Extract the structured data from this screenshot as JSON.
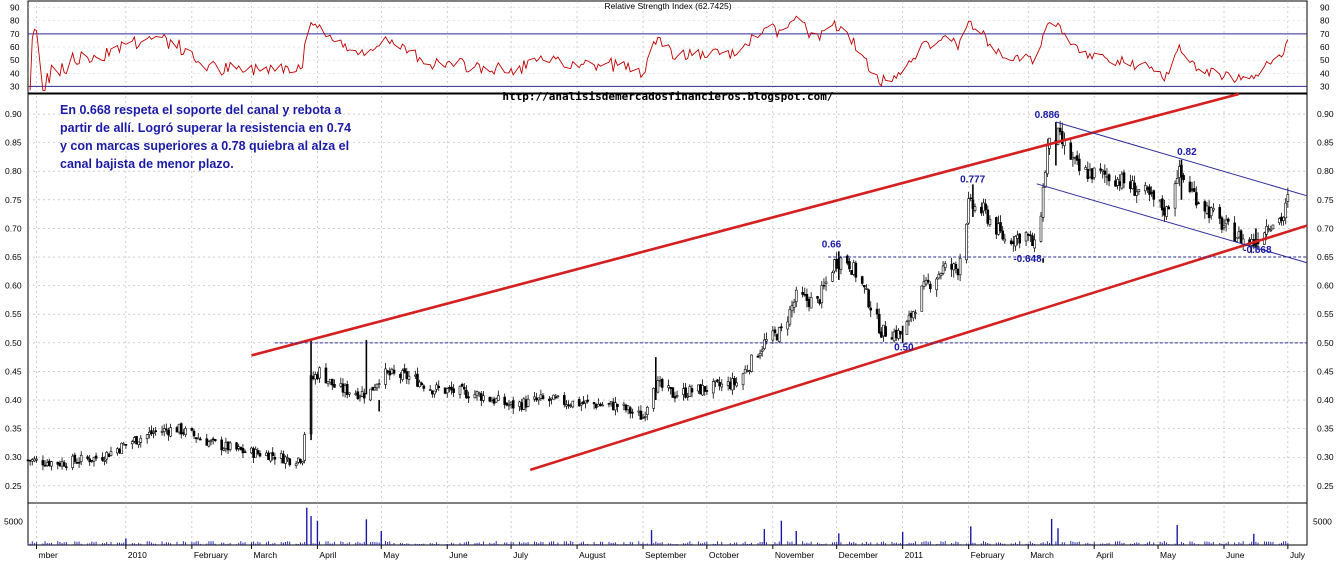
{
  "chart_data": {
    "type": "candlestick",
    "rsi_panel": {
      "title": "Relative Strength Index (62.7425)",
      "y_ticks": [
        30,
        40,
        50,
        60,
        70,
        80,
        90
      ],
      "ylim": [
        25,
        95
      ],
      "levels": [
        30,
        70
      ],
      "series_color": "#c00000"
    },
    "price_panel": {
      "y_ticks": [
        "0.25",
        "0.30",
        "0.35",
        "0.40",
        "0.45",
        "0.50",
        "0.55",
        "0.60",
        "0.65",
        "0.70",
        "0.75",
        "0.80",
        "0.85",
        "0.90"
      ],
      "ylim": [
        0.22,
        0.935
      ],
      "path_points": [
        [
          "2009-11-16",
          0.295
        ],
        [
          "2009-12-01",
          0.29
        ],
        [
          "2009-12-20",
          0.3
        ],
        [
          "2010-01-05",
          0.33
        ],
        [
          "2010-01-15",
          0.345
        ],
        [
          "2010-01-25",
          0.35
        ],
        [
          "2010-02-10",
          0.325
        ],
        [
          "2010-02-25",
          0.31
        ],
        [
          "2010-03-10",
          0.305
        ],
        [
          "2010-03-20",
          0.295
        ],
        [
          "2010-03-25",
          0.3
        ],
        [
          "2010-03-28",
          0.43
        ],
        [
          "2010-04-02",
          0.45
        ],
        [
          "2010-04-10",
          0.42
        ],
        [
          "2010-04-25",
          0.41
        ],
        [
          "2010-05-01",
          0.445
        ],
        [
          "2010-05-15",
          0.44
        ],
        [
          "2010-05-25",
          0.42
        ],
        [
          "2010-06-15",
          0.41
        ],
        [
          "2010-07-01",
          0.39
        ],
        [
          "2010-07-15",
          0.4
        ],
        [
          "2010-08-01",
          0.395
        ],
        [
          "2010-08-20",
          0.39
        ],
        [
          "2010-09-01",
          0.37
        ],
        [
          "2010-09-06",
          0.43
        ],
        [
          "2010-09-15",
          0.41
        ],
        [
          "2010-10-01",
          0.42
        ],
        [
          "2010-10-15",
          0.43
        ],
        [
          "2010-10-28",
          0.5
        ],
        [
          "2010-11-05",
          0.52
        ],
        [
          "2010-11-12",
          0.58
        ],
        [
          "2010-11-22",
          0.57
        ],
        [
          "2010-11-30",
          0.64
        ],
        [
          "2010-12-05",
          0.65
        ],
        [
          "2010-12-12",
          0.61
        ],
        [
          "2010-12-22",
          0.52
        ],
        [
          "2011-01-01",
          0.515
        ],
        [
          "2011-01-10",
          0.59
        ],
        [
          "2011-01-20",
          0.63
        ],
        [
          "2011-01-27",
          0.63
        ],
        [
          "2011-02-01",
          0.74
        ],
        [
          "2011-02-08",
          0.73
        ],
        [
          "2011-02-18",
          0.68
        ],
        [
          "2011-02-28",
          0.69
        ],
        [
          "2011-03-05",
          0.66
        ],
        [
          "2011-03-10",
          0.84
        ],
        [
          "2011-03-15",
          0.86
        ],
        [
          "2011-03-25",
          0.8
        ],
        [
          "2011-04-10",
          0.79
        ],
        [
          "2011-04-25",
          0.76
        ],
        [
          "2011-05-05",
          0.73
        ],
        [
          "2011-05-10",
          0.8
        ],
        [
          "2011-05-18",
          0.76
        ],
        [
          "2011-05-30",
          0.71
        ],
        [
          "2011-06-10",
          0.68
        ],
        [
          "2011-06-15",
          0.675
        ],
        [
          "2011-06-22",
          0.71
        ],
        [
          "2011-06-29",
          0.72
        ],
        [
          "2011-07-01",
          0.75
        ]
      ],
      "spikes": [
        [
          "2010-03-29",
          0.505,
          0.33
        ],
        [
          "2010-04-24",
          0.505,
          0.41
        ],
        [
          "2010-04-30",
          0.4,
          0.38
        ],
        [
          "2010-09-07",
          0.475,
          0.4
        ],
        [
          "2010-12-02",
          0.66,
          0.61
        ],
        [
          "2011-01-01",
          0.53,
          0.5
        ],
        [
          "2011-02-03",
          0.777,
          0.72
        ],
        [
          "2011-03-08",
          0.648,
          0.64
        ],
        [
          "2011-03-14",
          0.886,
          0.81
        ],
        [
          "2011-05-12",
          0.82,
          0.75
        ],
        [
          "2011-06-16",
          0.7,
          0.668
        ]
      ],
      "red_channel_upper": [
        [
          "2010-03-01",
          0.478
        ],
        [
          "2011-06-08",
          0.935
        ]
      ],
      "red_channel_lower": [
        [
          "2010-07-10",
          0.278
        ],
        [
          "2011-07-10",
          0.705
        ]
      ],
      "blue_channel_upper": [
        [
          "2011-03-14",
          0.886
        ],
        [
          "2011-07-10",
          0.757
        ]
      ],
      "blue_channel_lower": [
        [
          "2011-03-05",
          0.778
        ],
        [
          "2011-07-10",
          0.64
        ]
      ],
      "support_lines": [
        {
          "level": 0.5,
          "from": "2010-03-12",
          "to": "2011-07-10"
        },
        {
          "level": 0.65,
          "from": "2010-11-27",
          "to": "2011-07-10"
        }
      ],
      "price_labels": [
        {
          "text": "0.886",
          "date": "2011-03-04",
          "price": 0.893
        },
        {
          "text": "0.82",
          "date": "2011-05-10",
          "price": 0.828
        },
        {
          "text": "0.777",
          "date": "2011-01-28",
          "price": 0.78
        },
        {
          "text": "0.66",
          "date": "2010-11-24",
          "price": 0.667
        },
        {
          "text": "-0.648",
          "date": "2011-02-22",
          "price": 0.641
        },
        {
          "text": "-0.668",
          "date": "2011-06-10",
          "price": 0.657
        },
        {
          "text": "0.50",
          "date": "2010-12-28",
          "price": 0.487
        }
      ]
    },
    "volume_panel": {
      "y_ticks": [
        "5000"
      ],
      "ylim": [
        0,
        9000
      ],
      "spikes": [
        [
          "2010-01-01",
          1400
        ],
        [
          "2010-03-27",
          8000
        ],
        [
          "2010-03-29",
          6200
        ],
        [
          "2010-04-01",
          5200
        ],
        [
          "2010-04-24",
          5500
        ],
        [
          "2010-05-01",
          3000
        ],
        [
          "2010-09-05",
          3200
        ],
        [
          "2010-10-28",
          3400
        ],
        [
          "2010-11-05",
          5200
        ],
        [
          "2010-11-12",
          3000
        ],
        [
          "2010-12-02",
          2500
        ],
        [
          "2011-01-01",
          2800
        ],
        [
          "2011-02-02",
          4000
        ],
        [
          "2011-03-12",
          5600
        ],
        [
          "2011-03-15",
          3600
        ],
        [
          "2011-05-10",
          4300
        ],
        [
          "2011-06-15",
          2400
        ]
      ]
    },
    "x_axis": {
      "labels": [
        {
          "text": "mber",
          "date": "2009-11-20"
        },
        {
          "text": "2010",
          "date": "2010-01-01"
        },
        {
          "text": "February",
          "date": "2010-02-01"
        },
        {
          "text": "March",
          "date": "2010-03-01"
        },
        {
          "text": "April",
          "date": "2010-04-01"
        },
        {
          "text": "May",
          "date": "2010-05-01"
        },
        {
          "text": "June",
          "date": "2010-06-01"
        },
        {
          "text": "July",
          "date": "2010-07-01"
        },
        {
          "text": "August",
          "date": "2010-08-01"
        },
        {
          "text": "September",
          "date": "2010-09-01"
        },
        {
          "text": "October",
          "date": "2010-10-01"
        },
        {
          "text": "November",
          "date": "2010-11-01"
        },
        {
          "text": "December",
          "date": "2010-12-01"
        },
        {
          "text": "2011",
          "date": "2011-01-01"
        },
        {
          "text": "February",
          "date": "2011-02-01"
        },
        {
          "text": "March",
          "date": "2011-03-01"
        },
        {
          "text": "April",
          "date": "2011-04-01"
        },
        {
          "text": "May",
          "date": "2011-05-01"
        },
        {
          "text": "June",
          "date": "2011-06-01"
        },
        {
          "text": "July",
          "date": "2011-07-01"
        }
      ],
      "range": [
        "2009-11-16",
        "2011-07-10"
      ]
    },
    "annotation_text": "En 0.668 respeta el soporte del canal y rebota a partir de allí. Logró superar la resistencia en 0.74 y con marcas superiores a 0.78 quiebra al alza el canal bajista de menor plazo.",
    "source_url": "http://analisisdemercadosfinancieros.blogspot.com/",
    "colors": {
      "price": "#000000",
      "red_channel": "#d42020",
      "blue_channel": "#2b2b9a",
      "support": "#2b2b9a",
      "rsi": "#c00000",
      "volume": "#1a1aa6",
      "annotation": "#1a1aa6"
    }
  }
}
